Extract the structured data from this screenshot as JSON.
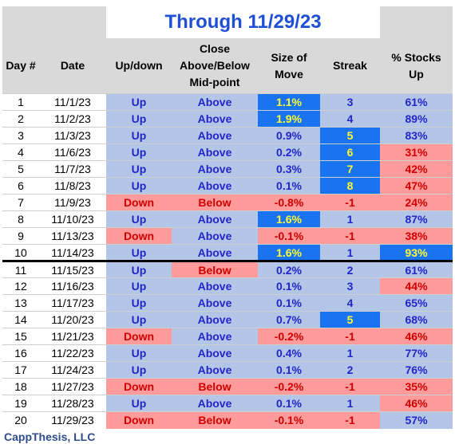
{
  "title": "Through 11/29/23",
  "headers": {
    "day": "Day #",
    "date": "Date",
    "updown": "Up/down",
    "close": "Close Above/Below Mid-point",
    "size": "Size of Move",
    "streak": "Streak",
    "pct": "% Stocks Up"
  },
  "divider_after_day": "10",
  "colors": {
    "blue_text": "#2424c8",
    "red_text": "#d10000",
    "light_blue_bg": "#b4c6e7",
    "pink_bg": "#ff9b9b",
    "bright_blue_bg": "#1a74f2",
    "yellow_text": "#ffff2e"
  },
  "rows": [
    {
      "day": "1",
      "date": "11/1/23",
      "updown": "Up",
      "close": "Above",
      "size": "1.1%",
      "streak": "3",
      "pct": "61%"
    },
    {
      "day": "2",
      "date": "11/2/23",
      "updown": "Up",
      "close": "Above",
      "size": "1.9%",
      "streak": "4",
      "pct": "89%"
    },
    {
      "day": "3",
      "date": "11/3/23",
      "updown": "Up",
      "close": "Above",
      "size": "0.9%",
      "streak": "5",
      "pct": "83%"
    },
    {
      "day": "4",
      "date": "11/6/23",
      "updown": "Up",
      "close": "Above",
      "size": "0.2%",
      "streak": "6",
      "pct": "31%"
    },
    {
      "day": "5",
      "date": "11/7/23",
      "updown": "Up",
      "close": "Above",
      "size": "0.3%",
      "streak": "7",
      "pct": "42%"
    },
    {
      "day": "6",
      "date": "11/8/23",
      "updown": "Up",
      "close": "Above",
      "size": "0.1%",
      "streak": "8",
      "pct": "47%"
    },
    {
      "day": "7",
      "date": "11/9/23",
      "updown": "Down",
      "close": "Below",
      "size": "-0.8%",
      "streak": "-1",
      "pct": "24%"
    },
    {
      "day": "8",
      "date": "11/10/23",
      "updown": "Up",
      "close": "Above",
      "size": "1.6%",
      "streak": "1",
      "pct": "87%"
    },
    {
      "day": "9",
      "date": "11/13/23",
      "updown": "Down",
      "close": "Above",
      "size": "-0.1%",
      "streak": "-1",
      "pct": "38%"
    },
    {
      "day": "10",
      "date": "11/14/23",
      "updown": "Up",
      "close": "Above",
      "size": "1.6%",
      "streak": "1",
      "pct": "93%"
    },
    {
      "day": "11",
      "date": "11/15/23",
      "updown": "Up",
      "close": "Below",
      "size": "0.2%",
      "streak": "2",
      "pct": "61%"
    },
    {
      "day": "12",
      "date": "11/16/23",
      "updown": "Up",
      "close": "Above",
      "size": "0.1%",
      "streak": "3",
      "pct": "44%"
    },
    {
      "day": "13",
      "date": "11/17/23",
      "updown": "Up",
      "close": "Above",
      "size": "0.1%",
      "streak": "4",
      "pct": "65%"
    },
    {
      "day": "14",
      "date": "11/20/23",
      "updown": "Up",
      "close": "Above",
      "size": "0.7%",
      "streak": "5",
      "pct": "68%"
    },
    {
      "day": "15",
      "date": "11/21/23",
      "updown": "Down",
      "close": "Above",
      "size": "-0.2%",
      "streak": "-1",
      "pct": "46%"
    },
    {
      "day": "16",
      "date": "11/22/23",
      "updown": "Up",
      "close": "Above",
      "size": "0.4%",
      "streak": "1",
      "pct": "77%"
    },
    {
      "day": "17",
      "date": "11/24/23",
      "updown": "Up",
      "close": "Above",
      "size": "0.1%",
      "streak": "2",
      "pct": "76%"
    },
    {
      "day": "18",
      "date": "11/27/23",
      "updown": "Down",
      "close": "Below",
      "size": "-0.2%",
      "streak": "-1",
      "pct": "35%"
    },
    {
      "day": "19",
      "date": "11/28/23",
      "updown": "Up",
      "close": "Above",
      "size": "0.1%",
      "streak": "1",
      "pct": "46%"
    },
    {
      "day": "20",
      "date": "11/29/23",
      "updown": "Down",
      "close": "Below",
      "size": "-0.1%",
      "streak": "-1",
      "pct": "57%"
    }
  ],
  "footer": "CappThesis, LLC"
}
